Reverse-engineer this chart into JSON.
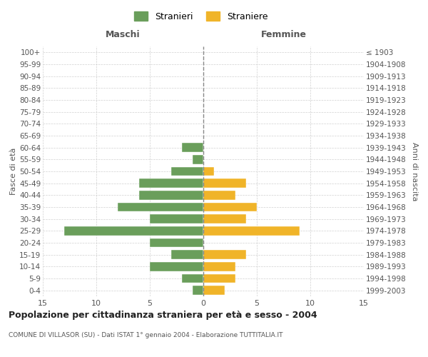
{
  "age_groups": [
    "0-4",
    "5-9",
    "10-14",
    "15-19",
    "20-24",
    "25-29",
    "30-34",
    "35-39",
    "40-44",
    "45-49",
    "50-54",
    "55-59",
    "60-64",
    "65-69",
    "70-74",
    "75-79",
    "80-84",
    "85-89",
    "90-94",
    "95-99",
    "100+"
  ],
  "birth_years": [
    "1999-2003",
    "1994-1998",
    "1989-1993",
    "1984-1988",
    "1979-1983",
    "1974-1978",
    "1969-1973",
    "1964-1968",
    "1959-1963",
    "1954-1958",
    "1949-1953",
    "1944-1948",
    "1939-1943",
    "1934-1938",
    "1929-1933",
    "1924-1928",
    "1919-1923",
    "1914-1918",
    "1909-1913",
    "1904-1908",
    "≤ 1903"
  ],
  "males": [
    1,
    2,
    5,
    3,
    5,
    13,
    5,
    8,
    6,
    6,
    3,
    1,
    2,
    0,
    0,
    0,
    0,
    0,
    0,
    0,
    0
  ],
  "females": [
    2,
    3,
    3,
    4,
    0,
    9,
    4,
    5,
    3,
    4,
    1,
    0,
    0,
    0,
    0,
    0,
    0,
    0,
    0,
    0,
    0
  ],
  "male_color": "#6a9e5b",
  "female_color": "#f0b429",
  "title": "Popolazione per cittadinanza straniera per età e sesso - 2004",
  "subtitle": "COMUNE DI VILLASOR (SU) - Dati ISTAT 1° gennaio 2004 - Elaborazione TUTTITALIA.IT",
  "xlabel_left": "Maschi",
  "xlabel_right": "Femmine",
  "ylabel_left": "Fasce di età",
  "ylabel_right": "Anni di nascita",
  "legend_male": "Stranieri",
  "legend_female": "Straniere",
  "xlim": 15,
  "background_color": "#ffffff",
  "grid_color": "#cccccc"
}
